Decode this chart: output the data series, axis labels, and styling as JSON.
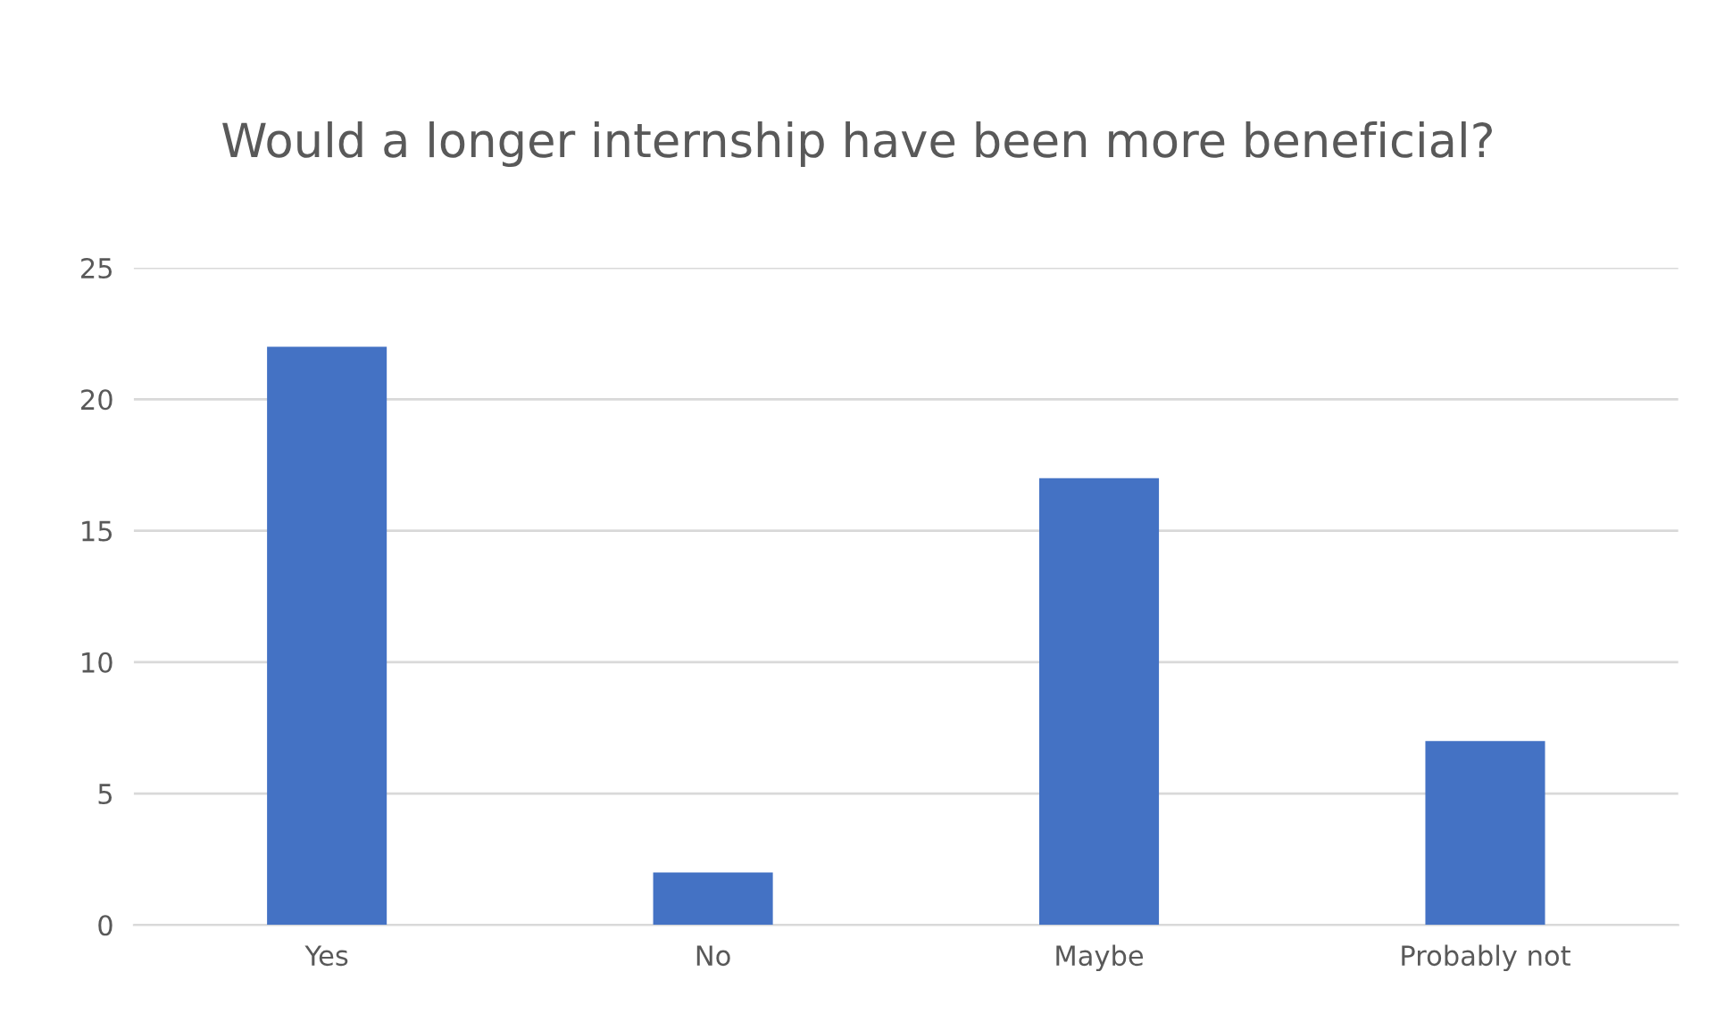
{
  "chart_data": {
    "type": "bar",
    "title": "Would a longer internship have been more beneficial?",
    "categories": [
      "Yes",
      "No",
      "Maybe",
      "Probably not"
    ],
    "values": [
      22,
      2,
      17,
      7
    ],
    "color": "#4472c4",
    "ylim": [
      0,
      25
    ],
    "yticks": [
      0,
      5,
      10,
      15,
      20,
      25
    ],
    "grid": "y"
  }
}
